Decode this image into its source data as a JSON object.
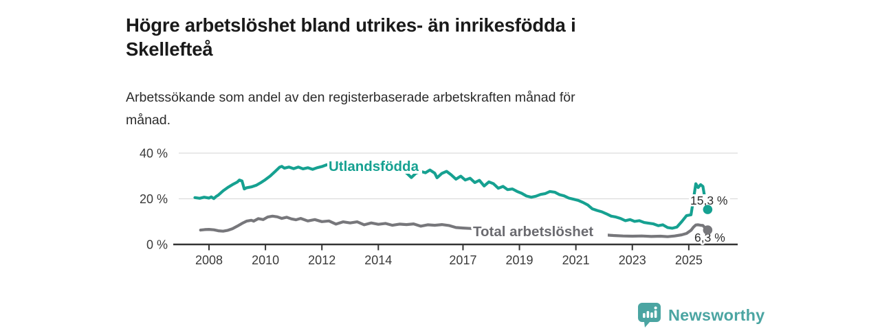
{
  "header": {
    "title_lines": [
      "Högre arbetslöshet bland utrikes- än inrikesfödda i",
      "Skellefteå"
    ],
    "subtitle_lines": [
      "Arbetssökande som andel av den registerbaserade arbetskraften månad för",
      "månad."
    ]
  },
  "branding": {
    "logo_text": "Newsworthy",
    "logo_color": "#4ba5a2"
  },
  "chart_data": {
    "type": "line",
    "title": "Högre arbetslöshet bland utrikes- än inrikesfödda i Skellefteå",
    "subtitle": "Arbetssökande som andel av den registerbaserade arbetskraften månad för månad.",
    "grid": "horizontal",
    "legend_position": "inline-labels",
    "style": {
      "grid_color": "#dcdcdc",
      "axis_line_color": "#333333",
      "axis_text_color": "#3a3a3a",
      "end_label_color": "#2d2d2d",
      "background": "#ffffff"
    },
    "x_axis": {
      "unit": "year",
      "range": [
        2007.4,
        2026.1
      ],
      "ticks": [
        2008,
        2010,
        2012,
        2014,
        2017,
        2019,
        2021,
        2023,
        2025
      ],
      "labels": [
        "2008",
        "2010",
        "2012",
        "2014",
        "2017",
        "2019",
        "2021",
        "2023",
        "2025"
      ]
    },
    "y_axis": {
      "unit": "%",
      "range": [
        0,
        42
      ],
      "ticks": [
        0,
        20,
        40
      ],
      "labels": [
        "0 %",
        "20 %",
        "40 %"
      ]
    },
    "series": [
      {
        "id": "utlandsfodda",
        "name": "Utlandsfödda",
        "color": "#16a191",
        "end_value": 15.3,
        "end_label": "15,3 %",
        "points": [
          [
            2007.5,
            20.5
          ],
          [
            2007.67,
            20.2
          ],
          [
            2007.83,
            20.7
          ],
          [
            2008.0,
            20.3
          ],
          [
            2008.08,
            20.8
          ],
          [
            2008.17,
            20.1
          ],
          [
            2008.25,
            21.0
          ],
          [
            2008.33,
            21.6
          ],
          [
            2008.5,
            23.5
          ],
          [
            2008.67,
            25.0
          ],
          [
            2008.83,
            26.2
          ],
          [
            2009.0,
            27.3
          ],
          [
            2009.08,
            28.2
          ],
          [
            2009.17,
            27.8
          ],
          [
            2009.25,
            24.3
          ],
          [
            2009.33,
            24.8
          ],
          [
            2009.5,
            25.2
          ],
          [
            2009.67,
            25.9
          ],
          [
            2009.83,
            27.0
          ],
          [
            2010.0,
            28.4
          ],
          [
            2010.17,
            30.0
          ],
          [
            2010.33,
            31.8
          ],
          [
            2010.5,
            33.8
          ],
          [
            2010.58,
            34.2
          ],
          [
            2010.67,
            33.4
          ],
          [
            2010.83,
            33.9
          ],
          [
            2011.0,
            33.2
          ],
          [
            2011.17,
            33.9
          ],
          [
            2011.33,
            33.1
          ],
          [
            2011.5,
            33.6
          ],
          [
            2011.67,
            32.9
          ],
          [
            2011.83,
            33.6
          ],
          [
            2012.0,
            34.1
          ],
          [
            2012.17,
            34.9
          ],
          [
            2012.33,
            34.3
          ],
          [
            2012.5,
            35.2
          ],
          [
            2012.67,
            35.7
          ],
          [
            2012.83,
            35.0
          ],
          [
            2013.0,
            34.7
          ],
          [
            2013.25,
            35.0
          ],
          [
            2013.5,
            34.4
          ],
          [
            2013.75,
            34.7
          ],
          [
            2014.0,
            34.0
          ],
          [
            2014.25,
            33.7
          ],
          [
            2014.5,
            33.3
          ],
          [
            2014.75,
            33.0
          ],
          [
            2015.0,
            31.3
          ],
          [
            2015.17,
            29.3
          ],
          [
            2015.33,
            31.2
          ],
          [
            2015.5,
            32.0
          ],
          [
            2015.67,
            31.4
          ],
          [
            2015.83,
            32.6
          ],
          [
            2016.0,
            31.2
          ],
          [
            2016.08,
            29.2
          ],
          [
            2016.25,
            31.1
          ],
          [
            2016.42,
            32.0
          ],
          [
            2016.58,
            30.5
          ],
          [
            2016.75,
            28.6
          ],
          [
            2016.92,
            29.9
          ],
          [
            2017.08,
            28.2
          ],
          [
            2017.25,
            29.0
          ],
          [
            2017.42,
            27.1
          ],
          [
            2017.58,
            28.1
          ],
          [
            2017.75,
            25.6
          ],
          [
            2017.92,
            27.4
          ],
          [
            2018.08,
            26.6
          ],
          [
            2018.25,
            24.6
          ],
          [
            2018.42,
            25.4
          ],
          [
            2018.58,
            24.0
          ],
          [
            2018.75,
            24.3
          ],
          [
            2018.92,
            23.2
          ],
          [
            2019.08,
            22.4
          ],
          [
            2019.25,
            21.2
          ],
          [
            2019.42,
            20.7
          ],
          [
            2019.58,
            21.1
          ],
          [
            2019.75,
            21.9
          ],
          [
            2019.92,
            22.3
          ],
          [
            2020.08,
            23.2
          ],
          [
            2020.25,
            22.9
          ],
          [
            2020.42,
            21.8
          ],
          [
            2020.58,
            21.3
          ],
          [
            2020.75,
            20.3
          ],
          [
            2020.92,
            19.8
          ],
          [
            2021.08,
            19.3
          ],
          [
            2021.25,
            18.4
          ],
          [
            2021.42,
            17.3
          ],
          [
            2021.58,
            15.6
          ],
          [
            2021.75,
            14.9
          ],
          [
            2021.92,
            14.3
          ],
          [
            2022.08,
            13.4
          ],
          [
            2022.25,
            12.4
          ],
          [
            2022.42,
            12.0
          ],
          [
            2022.58,
            11.4
          ],
          [
            2022.75,
            10.4
          ],
          [
            2022.92,
            10.9
          ],
          [
            2023.08,
            10.1
          ],
          [
            2023.25,
            10.4
          ],
          [
            2023.42,
            9.6
          ],
          [
            2023.58,
            9.3
          ],
          [
            2023.75,
            9.0
          ],
          [
            2023.92,
            8.2
          ],
          [
            2024.08,
            8.6
          ],
          [
            2024.25,
            7.4
          ],
          [
            2024.42,
            7.1
          ],
          [
            2024.58,
            7.6
          ],
          [
            2024.75,
            10.0
          ],
          [
            2024.92,
            12.6
          ],
          [
            2025.0,
            12.8
          ],
          [
            2025.08,
            13.0
          ],
          [
            2025.17,
            20.0
          ],
          [
            2025.25,
            26.6
          ],
          [
            2025.33,
            24.9
          ],
          [
            2025.42,
            26.2
          ],
          [
            2025.5,
            25.4
          ],
          [
            2025.58,
            19.5
          ],
          [
            2025.67,
            15.3
          ]
        ]
      },
      {
        "id": "total",
        "name": "Total arbetslöshet",
        "color": "#77777b",
        "label_color": "#6b6b70",
        "end_value": 6.3,
        "end_label": "6,3 %",
        "points": [
          [
            2007.7,
            6.3
          ],
          [
            2007.85,
            6.5
          ],
          [
            2008.0,
            6.6
          ],
          [
            2008.17,
            6.4
          ],
          [
            2008.33,
            6.0
          ],
          [
            2008.5,
            5.8
          ],
          [
            2008.67,
            6.2
          ],
          [
            2008.83,
            6.9
          ],
          [
            2009.0,
            8.0
          ],
          [
            2009.17,
            9.2
          ],
          [
            2009.33,
            10.2
          ],
          [
            2009.5,
            10.6
          ],
          [
            2009.58,
            10.2
          ],
          [
            2009.75,
            11.3
          ],
          [
            2009.92,
            10.9
          ],
          [
            2010.08,
            12.0
          ],
          [
            2010.25,
            12.4
          ],
          [
            2010.42,
            12.1
          ],
          [
            2010.58,
            11.4
          ],
          [
            2010.75,
            11.9
          ],
          [
            2010.92,
            11.2
          ],
          [
            2011.08,
            10.8
          ],
          [
            2011.25,
            11.4
          ],
          [
            2011.5,
            10.3
          ],
          [
            2011.75,
            10.9
          ],
          [
            2012.0,
            10.0
          ],
          [
            2012.25,
            10.3
          ],
          [
            2012.5,
            8.9
          ],
          [
            2012.75,
            9.9
          ],
          [
            2013.0,
            9.4
          ],
          [
            2013.25,
            9.9
          ],
          [
            2013.5,
            8.6
          ],
          [
            2013.75,
            9.4
          ],
          [
            2014.0,
            8.8
          ],
          [
            2014.25,
            9.2
          ],
          [
            2014.5,
            8.4
          ],
          [
            2014.75,
            8.9
          ],
          [
            2015.0,
            8.7
          ],
          [
            2015.25,
            9.0
          ],
          [
            2015.5,
            8.0
          ],
          [
            2015.75,
            8.6
          ],
          [
            2016.0,
            8.4
          ],
          [
            2016.25,
            8.7
          ],
          [
            2016.5,
            8.3
          ],
          [
            2016.75,
            7.4
          ],
          [
            2017.0,
            7.2
          ],
          [
            2017.25,
            7.0
          ],
          [
            2017.5,
            6.8
          ],
          [
            2018.0,
            6.3
          ],
          [
            2018.5,
            5.9
          ],
          [
            2019.0,
            5.6
          ],
          [
            2019.5,
            5.4
          ],
          [
            2020.0,
            5.8
          ],
          [
            2020.33,
            6.4
          ],
          [
            2020.67,
            6.0
          ],
          [
            2021.0,
            5.4
          ],
          [
            2021.5,
            4.8
          ],
          [
            2022.0,
            4.2
          ],
          [
            2022.33,
            3.9
          ],
          [
            2022.67,
            3.7
          ],
          [
            2023.0,
            3.6
          ],
          [
            2023.33,
            3.7
          ],
          [
            2023.67,
            3.5
          ],
          [
            2024.0,
            3.6
          ],
          [
            2024.25,
            3.4
          ],
          [
            2024.5,
            3.7
          ],
          [
            2024.75,
            4.2
          ],
          [
            2024.92,
            4.8
          ],
          [
            2025.08,
            6.2
          ],
          [
            2025.17,
            7.6
          ],
          [
            2025.25,
            8.5
          ],
          [
            2025.33,
            8.6
          ],
          [
            2025.42,
            8.4
          ],
          [
            2025.5,
            8.3
          ],
          [
            2025.58,
            7.2
          ],
          [
            2025.67,
            6.3
          ]
        ]
      }
    ]
  }
}
